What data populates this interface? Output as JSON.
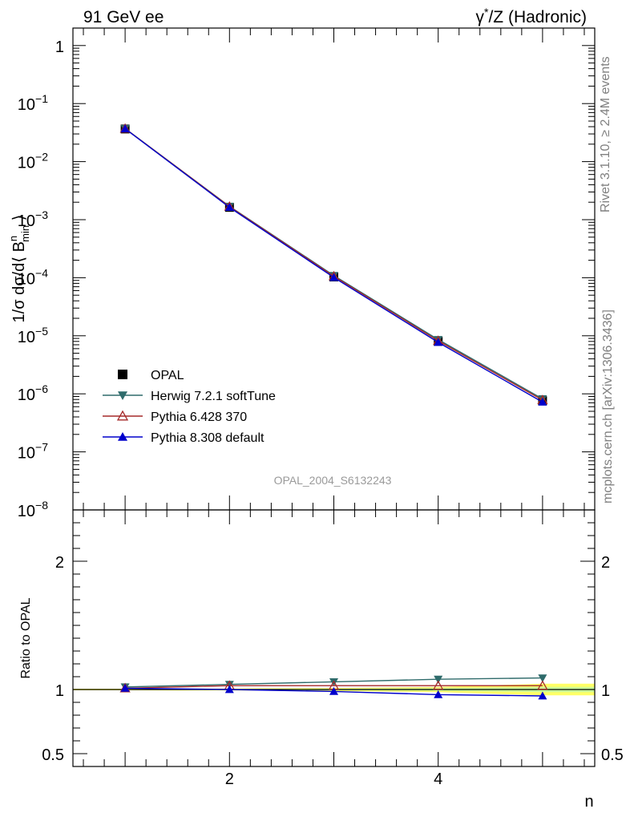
{
  "header": {
    "left": "91 GeV ee",
    "right": "γ*/Z (Hadronic)"
  },
  "side_texts": {
    "rivet": "Rivet 3.1.10, ≥ 2.4M events",
    "mcplots": "mcplots.cern.ch [arXiv:1306.3436]"
  },
  "watermark": "OPAL_2004_S6132243",
  "colors": {
    "data": "#000000",
    "herwig": "#2f6b6b",
    "pythia6": "#a52a2a",
    "pythia8": "#0000cc",
    "band_inner": "#ccff99",
    "band_outer": "#ffff66"
  },
  "chart_data": [
    {
      "type": "line",
      "panel": "main",
      "ylabel": "1/σ dσ/d⟨ B^n_min ⟩",
      "yscale": "log",
      "ylim": [
        1e-08,
        2
      ],
      "xlim": [
        0.5,
        5.5
      ],
      "y_ticks": [
        "10^-8",
        "10^-7",
        "10^-6",
        "10^-5",
        "10^-4",
        "10^-3",
        "10^-2",
        "10^-1",
        "1"
      ],
      "legend_position": "lower-left",
      "x": [
        1,
        2,
        3,
        4,
        5
      ],
      "series": [
        {
          "name": "OPAL",
          "marker": "square",
          "values": [
            0.0365,
            0.00163,
            0.000103,
            8e-06,
            7.6e-07
          ]
        },
        {
          "name": "Herwig 7.2.1 softTune",
          "marker": "triangle-down",
          "values": [
            0.0372,
            0.0017,
            0.000109,
            8.6e-06,
            8.2e-07
          ]
        },
        {
          "name": "Pythia 6.428 370",
          "marker": "triangle-up-open",
          "values": [
            0.037,
            0.00168,
            0.000106,
            8.2e-06,
            7.8e-07
          ]
        },
        {
          "name": "Pythia 8.308 default",
          "marker": "triangle-up",
          "values": [
            0.0369,
            0.00163,
            0.000101,
            7.7e-06,
            7.2e-07
          ]
        }
      ]
    },
    {
      "type": "line",
      "panel": "ratio",
      "ylabel": "Ratio to OPAL",
      "xlabel": "n",
      "ylim": [
        0.4,
        2.4
      ],
      "y_ticks": [
        "0.5",
        "1",
        "2"
      ],
      "x_ticks": [
        "2",
        "4"
      ],
      "x": [
        1,
        2,
        3,
        4,
        5
      ],
      "series": [
        {
          "name": "Herwig 7.2.1 softTune",
          "values": [
            1.02,
            1.04,
            1.06,
            1.08,
            1.09
          ]
        },
        {
          "name": "Pythia 6.428 370",
          "values": [
            1.01,
            1.03,
            1.03,
            1.03,
            1.03
          ]
        },
        {
          "name": "Pythia 8.308 default",
          "values": [
            1.01,
            1.0,
            0.985,
            0.96,
            0.95
          ]
        }
      ],
      "band": {
        "x": [
          0.5,
          1,
          2,
          3,
          4,
          5,
          5.5
        ],
        "inner": [
          0.003,
          0.003,
          0.004,
          0.006,
          0.01,
          0.02,
          0.02
        ],
        "outer": [
          0.006,
          0.006,
          0.008,
          0.012,
          0.02,
          0.045,
          0.045
        ]
      }
    }
  ]
}
